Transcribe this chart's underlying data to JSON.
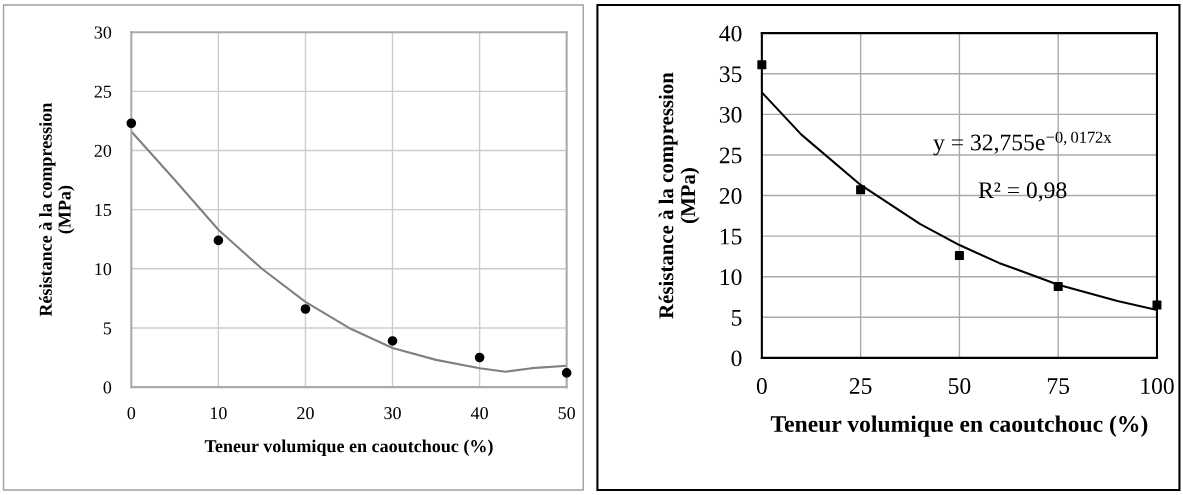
{
  "chart_data": [
    {
      "type": "scatter",
      "xlabel": "Teneur volumique en caoutchouc (%)",
      "ylabel": "Résistance à la compression\n(MPa)",
      "xlim": [
        0,
        50
      ],
      "xticks": [
        0,
        10,
        20,
        30,
        40,
        50
      ],
      "ylim": [
        0,
        30
      ],
      "yticks": [
        0,
        5,
        10,
        15,
        20,
        25,
        30
      ],
      "grid": true,
      "series": [
        {
          "marker": "circle",
          "color": "#000000",
          "x": [
            0,
            10,
            20,
            30,
            40,
            50
          ],
          "values": [
            22.3,
            12.4,
            6.6,
            3.9,
            2.5,
            1.2
          ]
        },
        {
          "type": "line",
          "marker": "none",
          "color": "#808080",
          "x": [
            0,
            5,
            10,
            15,
            20,
            25,
            30,
            35,
            40,
            43,
            46,
            50
          ],
          "values": [
            21.6,
            17.5,
            13.3,
            10.0,
            7.2,
            5.0,
            3.3,
            2.3,
            1.6,
            1.3,
            1.6,
            1.8
          ]
        }
      ]
    },
    {
      "type": "scatter",
      "xlabel": "Teneur volumique en caoutchouc (%)",
      "ylabel": "Résistance à la compression\n(MPa)",
      "xlim": [
        0,
        100
      ],
      "xticks": [
        0,
        25,
        50,
        75,
        100
      ],
      "ylim": [
        0,
        40
      ],
      "yticks": [
        0,
        5,
        10,
        15,
        20,
        25,
        30,
        35,
        40
      ],
      "grid": true,
      "annotations": [
        "y = 32,755e$^{−0,0172x}$",
        "R² = 0,98"
      ],
      "series": [
        {
          "marker": "square",
          "color": "#000000",
          "x": [
            0,
            25,
            50,
            75,
            100
          ],
          "values": [
            36.1,
            20.7,
            12.6,
            8.8,
            6.5
          ]
        },
        {
          "type": "line",
          "marker": "none",
          "color": "#000000",
          "x": [
            0,
            10,
            25,
            40,
            50,
            60,
            75,
            90,
            100
          ],
          "values": [
            32.7,
            27.5,
            21.3,
            16.5,
            13.9,
            11.7,
            9.0,
            7.0,
            5.9
          ]
        }
      ]
    }
  ]
}
